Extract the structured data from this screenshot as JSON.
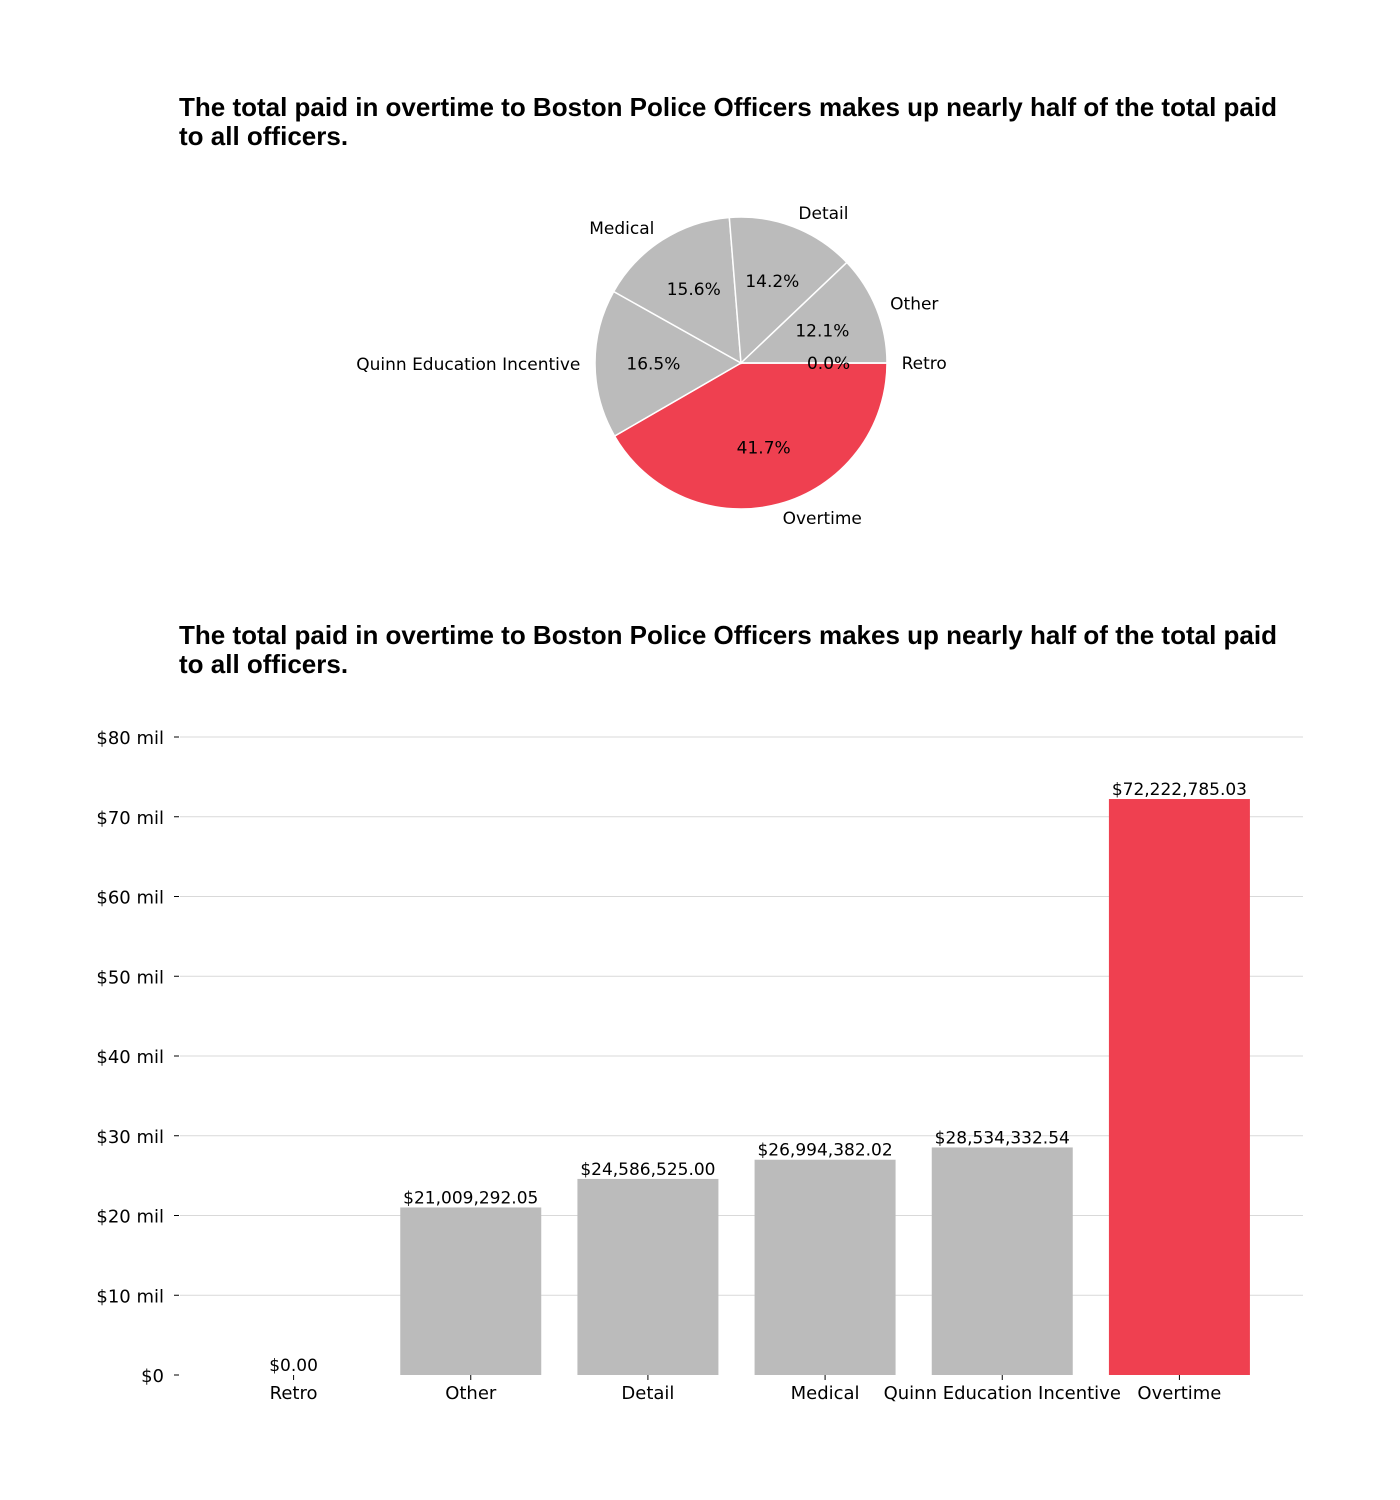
{
  "colors": {
    "highlight": "#ef4050",
    "base": "#bbbbbb",
    "grid": "#d9d9d9",
    "text": "#000000"
  },
  "chart_data": [
    {
      "type": "pie",
      "title": "The total paid in overtime to Boston Police Officers makes up nearly half of the total paid to all officers.",
      "categories": [
        "Overtime",
        "Quinn Education Incentive",
        "Medical",
        "Detail",
        "Other",
        "Retro"
      ],
      "values": [
        41.7,
        16.5,
        15.6,
        14.2,
        12.1,
        0.0
      ],
      "percent_labels": [
        "41.7%",
        "16.5%",
        "15.6%",
        "14.2%",
        "12.1%",
        "0.0%"
      ],
      "highlight": "Overtime",
      "legend": "none"
    },
    {
      "type": "bar",
      "title": "The total paid in overtime to Boston Police Officers makes up nearly half of the total paid to all officers.",
      "categories": [
        "Retro",
        "Other",
        "Detail",
        "Medical",
        "Quinn Education Incentive",
        "Overtime"
      ],
      "values": [
        0.0,
        21009292.05,
        24586525.0,
        26994382.02,
        28534332.54,
        72222785.03
      ],
      "value_labels": [
        "$0.00",
        "$21,009,292.05",
        "$24,586,525.00",
        "$26,994,382.02",
        "$28,534,332.54",
        "$72,222,785.03"
      ],
      "ylim": [
        0,
        80000000
      ],
      "yticks": [
        0,
        10000000,
        20000000,
        30000000,
        40000000,
        50000000,
        60000000,
        70000000,
        80000000
      ],
      "ytick_labels": [
        "$0",
        "$10 mil",
        "$20 mil",
        "$30 mil",
        "$40 mil",
        "$50 mil",
        "$60 mil",
        "$70 mil",
        "$80 mil"
      ],
      "grid": true,
      "highlight": "Overtime",
      "xlabel": "",
      "ylabel": ""
    }
  ]
}
